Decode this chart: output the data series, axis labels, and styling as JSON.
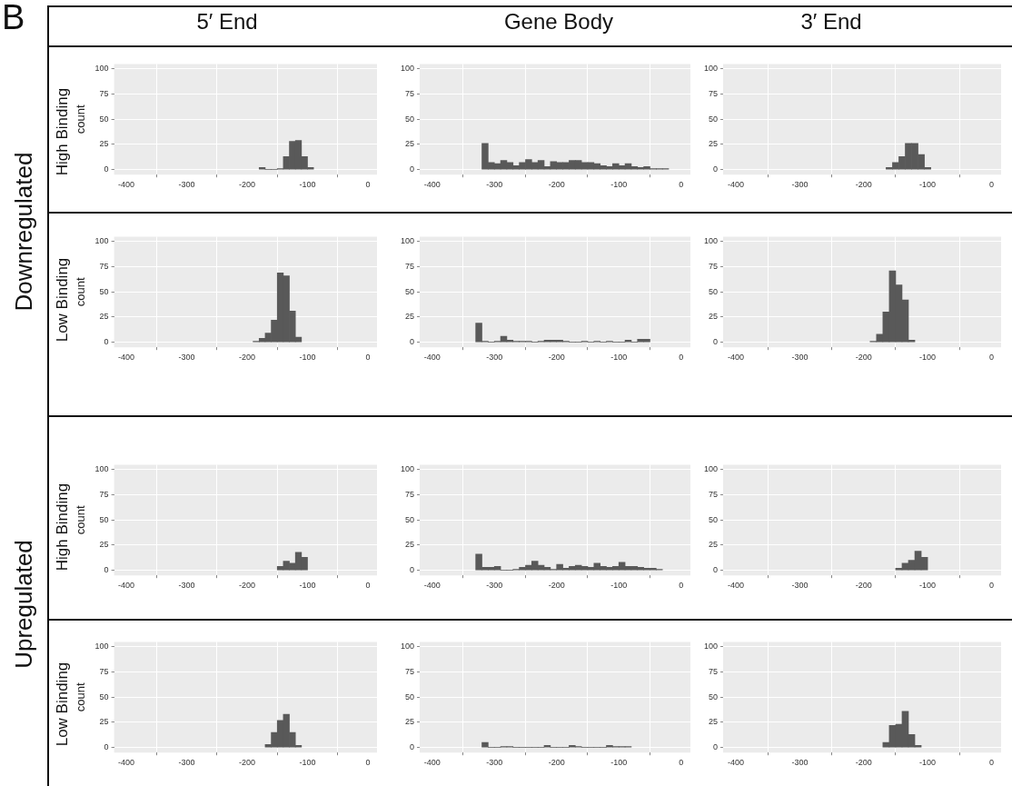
{
  "chart_data": [
    {
      "type": "histogram",
      "bins": [
        -180,
        -170,
        -160,
        -150,
        -140,
        -130,
        -120,
        -110,
        -100,
        -90
      ],
      "values": [
        2,
        0,
        0,
        1,
        13,
        28,
        29,
        13,
        2
      ],
      "color": "#595959",
      "xlim": [
        -420,
        15
      ],
      "xticks": [
        -400,
        -300,
        -200,
        -100,
        0
      ],
      "ylim": [
        -5,
        105
      ],
      "yticks": [
        0,
        25,
        50,
        75,
        100
      ],
      "grid": true,
      "ylabel": "count"
    },
    {
      "type": "histogram",
      "bins": [
        -320,
        -310,
        -300,
        -290,
        -280,
        -270,
        -260,
        -250,
        -240,
        -230,
        -220,
        -210,
        -200,
        -190,
        -180,
        -170,
        -160,
        -150,
        -140,
        -130,
        -120,
        -110,
        -100,
        -90,
        -80,
        -70,
        -60,
        -50,
        -40,
        -30,
        -20
      ],
      "values": [
        26,
        7,
        6,
        9,
        7,
        4,
        7,
        10,
        7,
        9,
        3,
        8,
        7,
        7,
        9,
        9,
        7,
        7,
        6,
        4,
        3,
        6,
        4,
        6,
        3,
        2,
        3,
        1,
        1,
        1
      ],
      "color": "#595959",
      "xlim": [
        -420,
        15
      ],
      "xticks": [
        -400,
        -300,
        -200,
        -100,
        0
      ],
      "ylim": [
        -5,
        105
      ],
      "yticks": [
        0,
        25,
        50,
        75,
        100
      ],
      "grid": true
    },
    {
      "type": "histogram",
      "bins": [
        -165,
        -155,
        -145,
        -135,
        -125,
        -115,
        -105,
        -95
      ],
      "values": [
        2,
        7,
        13,
        26,
        26,
        15,
        2
      ],
      "color": "#595959",
      "xlim": [
        -420,
        15
      ],
      "xticks": [
        -400,
        -300,
        -200,
        -100,
        0
      ],
      "ylim": [
        -5,
        105
      ],
      "yticks": [
        0,
        25,
        50,
        75,
        100
      ],
      "grid": true
    },
    {
      "type": "histogram",
      "bins": [
        -190,
        -180,
        -170,
        -160,
        -150,
        -140,
        -130,
        -120,
        -110
      ],
      "values": [
        1,
        4,
        9,
        22,
        69,
        66,
        31,
        5
      ],
      "color": "#595959",
      "xlim": [
        -420,
        15
      ],
      "xticks": [
        -400,
        -300,
        -200,
        -100,
        0
      ],
      "ylim": [
        -5,
        105
      ],
      "yticks": [
        0,
        25,
        50,
        75,
        100
      ],
      "grid": true,
      "ylabel": "count"
    },
    {
      "type": "histogram",
      "bins": [
        -330,
        -320,
        -310,
        -300,
        -290,
        -280,
        -270,
        -260,
        -250,
        -240,
        -230,
        -220,
        -210,
        -200,
        -190,
        -180,
        -170,
        -160,
        -150,
        -140,
        -130,
        -120,
        -110,
        -100,
        -90,
        -80,
        -70,
        -60,
        -50
      ],
      "values": [
        19,
        1,
        0,
        1,
        6,
        2,
        1,
        1,
        1,
        0,
        1,
        2,
        2,
        2,
        1,
        0,
        0,
        1,
        0,
        1,
        0,
        1,
        0,
        0,
        2,
        0,
        3,
        3
      ],
      "color": "#595959",
      "xlim": [
        -420,
        15
      ],
      "xticks": [
        -400,
        -300,
        -200,
        -100,
        0
      ],
      "ylim": [
        -5,
        105
      ],
      "yticks": [
        0,
        25,
        50,
        75,
        100
      ],
      "grid": true
    },
    {
      "type": "histogram",
      "bins": [
        -190,
        -180,
        -170,
        -160,
        -150,
        -140,
        -130,
        -120
      ],
      "values": [
        1,
        8,
        30,
        71,
        57,
        42,
        2
      ],
      "color": "#595959",
      "xlim": [
        -420,
        15
      ],
      "xticks": [
        -400,
        -300,
        -200,
        -100,
        0
      ],
      "ylim": [
        -5,
        105
      ],
      "yticks": [
        0,
        25,
        50,
        75,
        100
      ],
      "grid": true
    },
    {
      "type": "histogram",
      "bins": [
        -150,
        -140,
        -130,
        -120,
        -110,
        -100
      ],
      "values": [
        4,
        9,
        7,
        18,
        13
      ],
      "color": "#595959",
      "xlim": [
        -420,
        15
      ],
      "xticks": [
        -400,
        -300,
        -200,
        -100,
        0
      ],
      "ylim": [
        -5,
        105
      ],
      "yticks": [
        0,
        25,
        50,
        75,
        100
      ],
      "grid": true,
      "ylabel": "count"
    },
    {
      "type": "histogram",
      "bins": [
        -330,
        -320,
        -310,
        -300,
        -290,
        -280,
        -270,
        -260,
        -250,
        -240,
        -230,
        -220,
        -210,
        -200,
        -190,
        -180,
        -170,
        -160,
        -150,
        -140,
        -130,
        -120,
        -110,
        -100,
        -90,
        -80,
        -70,
        -60,
        -50,
        -40,
        -30
      ],
      "values": [
        16,
        3,
        3,
        4,
        0,
        0,
        1,
        3,
        5,
        9,
        5,
        3,
        1,
        6,
        2,
        4,
        5,
        4,
        3,
        7,
        4,
        3,
        4,
        8,
        4,
        4,
        3,
        2,
        2,
        1
      ],
      "color": "#595959",
      "xlim": [
        -420,
        15
      ],
      "xticks": [
        -400,
        -300,
        -200,
        -100,
        0
      ],
      "ylim": [
        -5,
        105
      ],
      "yticks": [
        0,
        25,
        50,
        75,
        100
      ],
      "grid": true
    },
    {
      "type": "histogram",
      "bins": [
        -150,
        -140,
        -130,
        -120,
        -110,
        -100
      ],
      "values": [
        2,
        7,
        10,
        19,
        13
      ],
      "color": "#595959",
      "xlim": [
        -420,
        15
      ],
      "xticks": [
        -400,
        -300,
        -200,
        -100,
        0
      ],
      "ylim": [
        -5,
        105
      ],
      "yticks": [
        0,
        25,
        50,
        75,
        100
      ],
      "grid": true
    },
    {
      "type": "histogram",
      "bins": [
        -170,
        -160,
        -150,
        -140,
        -130,
        -120,
        -110
      ],
      "values": [
        3,
        15,
        27,
        33,
        15,
        2
      ],
      "color": "#595959",
      "xlim": [
        -420,
        15
      ],
      "xticks": [
        -400,
        -300,
        -200,
        -100,
        0
      ],
      "ylim": [
        -5,
        105
      ],
      "yticks": [
        0,
        25,
        50,
        75,
        100
      ],
      "grid": true,
      "ylabel": "count"
    },
    {
      "type": "histogram",
      "bins": [
        -320,
        -310,
        -300,
        -290,
        -280,
        -270,
        -260,
        -250,
        -240,
        -230,
        -220,
        -210,
        -200,
        -190,
        -180,
        -170,
        -160,
        -150,
        -140,
        -130,
        -120,
        -110,
        -100,
        -90,
        -80
      ],
      "values": [
        5,
        0,
        0,
        1,
        1,
        0,
        0,
        0,
        0,
        0,
        2,
        0,
        0,
        0,
        2,
        1,
        0,
        0,
        0,
        0,
        2,
        1,
        1,
        1
      ],
      "color": "#595959",
      "xlim": [
        -420,
        15
      ],
      "xticks": [
        -400,
        -300,
        -200,
        -100,
        0
      ],
      "ylim": [
        -5,
        105
      ],
      "yticks": [
        0,
        25,
        50,
        75,
        100
      ],
      "grid": true
    },
    {
      "type": "histogram",
      "bins": [
        -170,
        -160,
        -150,
        -140,
        -130,
        -120,
        -110
      ],
      "values": [
        5,
        22,
        23,
        36,
        13,
        2
      ],
      "color": "#595959",
      "xlim": [
        -420,
        15
      ],
      "xticks": [
        -400,
        -300,
        -200,
        -100,
        0
      ],
      "ylim": [
        -5,
        105
      ],
      "yticks": [
        0,
        25,
        50,
        75,
        100
      ],
      "grid": true
    },
    {
      "type": "other",
      "annotations": [
        "B",
        "5′ End",
        "Gene Body",
        "3′ End",
        "Downregulated",
        "Upregulated",
        "High Binding",
        "Low Binding",
        "High Binding",
        "Low Binding"
      ]
    }
  ]
}
